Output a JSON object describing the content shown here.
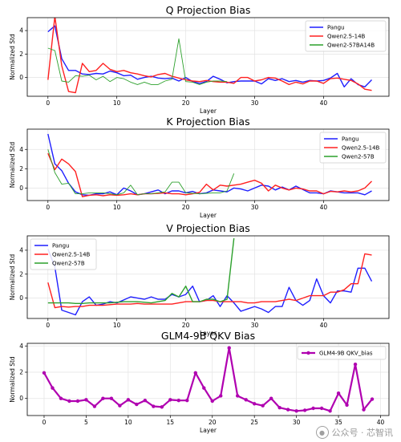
{
  "watermark": {
    "text": "公众号 · 芯智讯",
    "icon": "wechat-icon"
  },
  "colors": {
    "Pangu": "#1f1fff",
    "Qwen2.5-14B": "#ff2020",
    "Qwen2-57BA14B": "#2ca02c",
    "Qwen2-57B": "#2ca02c",
    "GLM4-9B QKV_bias": "#b000b0"
  },
  "chart_data": [
    {
      "type": "line",
      "title": "Q Projection Bias",
      "xlabel": "Layer",
      "ylabel": "Normalized Std",
      "xlim": [
        -3,
        49.5
      ],
      "ylim": [
        -1.6,
        5.1
      ],
      "xticks": [
        0,
        10,
        20,
        30,
        40
      ],
      "yticks": [
        0,
        2,
        4
      ],
      "grid": true,
      "legend": "top-right",
      "series": [
        {
          "name": "Pangu",
          "x_start": 0,
          "values": [
            3.9,
            4.4,
            1.6,
            0.6,
            0.6,
            0.3,
            0.25,
            0.35,
            0.3,
            0.55,
            0.4,
            0.15,
            0.2,
            -0.15,
            0.0,
            0.1,
            -0.05,
            -0.1,
            -0.05,
            -0.3,
            0.0,
            -0.35,
            -0.5,
            -0.35,
            0.1,
            -0.15,
            -0.45,
            -0.35,
            -0.3,
            -0.3,
            -0.3,
            -0.55,
            -0.1,
            -0.25,
            -0.1,
            -0.35,
            -0.25,
            -0.4,
            -0.25,
            -0.3,
            -0.25,
            -0.05,
            0.35,
            -0.8,
            -0.1,
            -0.6,
            -0.8,
            -0.2
          ]
        },
        {
          "name": "Qwen2.5-14B",
          "x_start": 0,
          "values": [
            -0.2,
            5.2,
            1.0,
            -1.2,
            -1.3,
            1.2,
            0.5,
            0.6,
            1.2,
            0.7,
            0.5,
            0.6,
            0.4,
            0.3,
            0.15,
            0.05,
            0.25,
            0.35,
            0.1,
            -0.05,
            -0.2,
            -0.3,
            -0.35,
            -0.25,
            -0.35,
            -0.4,
            -0.4,
            -0.5,
            0.0,
            0.0,
            -0.3,
            -0.2,
            0.0,
            -0.05,
            -0.3,
            -0.6,
            -0.4,
            -0.55,
            -0.3,
            -0.3,
            -0.5,
            -0.1,
            -0.05,
            -0.15,
            -0.25,
            -0.55,
            -1.0,
            -1.1
          ]
        },
        {
          "name": "Qwen2-57BA14B",
          "x_start": 0,
          "values": [
            2.5,
            2.3,
            -0.3,
            -0.4,
            0.15,
            0.1,
            0.2,
            -0.2,
            0.1,
            -0.35,
            0.0,
            -0.1,
            -0.4,
            -0.6,
            -0.4,
            -0.6,
            -0.6,
            -0.3,
            -0.15,
            3.3,
            -0.35,
            -0.4,
            -0.6,
            -0.4,
            -0.3,
            -0.3,
            -0.35
          ]
        }
      ]
    },
    {
      "type": "line",
      "title": "K Projection Bias",
      "xlabel": "Layer",
      "ylabel": "Normalized Std",
      "xlim": [
        -3,
        49.5
      ],
      "ylim": [
        -1.3,
        6.1
      ],
      "xticks": [
        0,
        10,
        20,
        30,
        40
      ],
      "yticks": [
        0,
        2,
        4
      ],
      "grid": true,
      "legend": "top-right",
      "series": [
        {
          "name": "Pangu",
          "x_start": 0,
          "values": [
            5.6,
            2.5,
            1.8,
            0.5,
            -0.4,
            -0.7,
            -0.75,
            -0.6,
            -0.6,
            -0.4,
            -0.7,
            0.0,
            -0.3,
            -0.7,
            -0.6,
            -0.4,
            -0.2,
            -0.6,
            -0.3,
            -0.3,
            -0.5,
            -0.35,
            -0.6,
            -0.5,
            -0.2,
            -0.3,
            -0.4,
            0.0,
            -0.1,
            -0.3,
            0.0,
            0.3,
            0.2,
            -0.2,
            0.1,
            -0.2,
            0.2,
            -0.15,
            -0.5,
            -0.5,
            -0.6,
            -0.3,
            -0.4,
            -0.5,
            -0.5,
            -0.5,
            -0.7,
            -0.3
          ]
        },
        {
          "name": "Qwen2.5-14B",
          "x_start": 0,
          "values": [
            3.6,
            1.9,
            3.0,
            2.5,
            1.7,
            -0.9,
            -0.75,
            -0.7,
            -0.8,
            -0.7,
            -0.75,
            -0.7,
            -0.6,
            -0.7,
            -0.6,
            -0.6,
            -0.55,
            -0.5,
            -0.6,
            -0.6,
            -0.7,
            -0.6,
            -0.45,
            0.4,
            -0.2,
            0.3,
            0.2,
            0.3,
            0.4,
            0.6,
            0.8,
            0.5,
            -0.3,
            0.3,
            0.0,
            -0.2,
            0.0,
            -0.1,
            -0.3,
            -0.3,
            -0.6,
            -0.35,
            -0.4,
            -0.3,
            -0.4,
            -0.3,
            0.0,
            0.7
          ]
        },
        {
          "name": "Qwen2-57B",
          "x_start": 0,
          "values": [
            4.0,
            1.6,
            0.4,
            0.5,
            -0.6,
            -0.6,
            -0.5,
            -0.5,
            -0.5,
            -0.6,
            -0.7,
            -0.5,
            0.3,
            -0.7,
            -0.6,
            -0.6,
            -0.5,
            -0.4,
            0.6,
            0.6,
            -0.5,
            -0.55,
            -0.6,
            -0.55,
            -0.5,
            -0.5,
            -0.3,
            1.5
          ]
        }
      ]
    },
    {
      "type": "line",
      "title": "V Projection Bias",
      "xlabel": "Layer",
      "ylabel": "Normalized Std",
      "xlim": [
        -3,
        49.5
      ],
      "ylim": [
        -1.7,
        5.2
      ],
      "xticks": [
        0,
        10,
        20,
        30,
        40
      ],
      "yticks": [
        0,
        2,
        4
      ],
      "grid": true,
      "legend": "top-left",
      "series": [
        {
          "name": "Pangu",
          "x_start": 0,
          "values": [
            4.1,
            2.6,
            -1.0,
            -1.2,
            -1.4,
            -0.3,
            0.1,
            -0.6,
            -0.5,
            -0.3,
            -0.4,
            -0.15,
            0.1,
            0.0,
            -0.1,
            0.1,
            -0.1,
            -0.1,
            0.3,
            0.1,
            0.3,
            1.0,
            -0.3,
            -0.2,
            0.2,
            -0.7,
            0.2,
            -0.4,
            -1.1,
            -0.9,
            -0.7,
            -0.9,
            -1.2,
            -0.7,
            -0.7,
            0.9,
            -0.2,
            -0.6,
            -0.2,
            1.6,
            0.2,
            -0.4,
            0.6,
            0.6,
            0.5,
            2.5,
            2.5,
            1.4
          ]
        },
        {
          "name": "Qwen2.5-14B",
          "x_start": 0,
          "values": [
            1.3,
            -0.8,
            -0.7,
            -0.75,
            -0.7,
            -0.7,
            -0.6,
            -0.6,
            -0.6,
            -0.55,
            -0.5,
            -0.5,
            -0.5,
            -0.45,
            -0.5,
            -0.5,
            -0.5,
            -0.5,
            -0.5,
            -0.4,
            -0.3,
            -0.3,
            -0.3,
            -0.2,
            -0.2,
            -0.3,
            -0.3,
            -0.3,
            -0.3,
            -0.4,
            -0.4,
            -0.3,
            -0.3,
            -0.3,
            -0.2,
            -0.1,
            -0.2,
            0.0,
            0.2,
            0.2,
            0.2,
            0.5,
            0.5,
            0.7,
            1.2,
            1.2,
            3.7,
            3.6
          ]
        },
        {
          "name": "Qwen2-57B",
          "x_start": 0,
          "values": [
            -0.4,
            -0.4,
            -0.4,
            -0.4,
            -0.45,
            -0.45,
            -0.4,
            -0.4,
            -0.4,
            -0.4,
            -0.35,
            -0.3,
            -0.3,
            -0.3,
            -0.35,
            -0.4,
            -0.3,
            -0.2,
            0.4,
            0.1,
            1.0,
            -0.3,
            -0.3,
            -0.1,
            -0.1,
            -0.3,
            -0.1,
            5.0
          ]
        }
      ]
    },
    {
      "type": "line",
      "title": "GLM4-9B QKV Bias",
      "xlabel": "Layer",
      "ylabel": "Normalized Std",
      "xlim": [
        -2,
        41
      ],
      "ylim": [
        -1.3,
        4.2
      ],
      "xticks": [
        0,
        5,
        10,
        15,
        20,
        25,
        30,
        35,
        40
      ],
      "yticks": [
        0,
        2,
        4
      ],
      "grid": true,
      "legend": "top-right",
      "markers": true,
      "series": [
        {
          "name": "GLM4-9B QKV_bias",
          "x_start": 0,
          "values": [
            1.95,
            0.8,
            0.0,
            -0.2,
            -0.2,
            -0.1,
            -0.6,
            0.0,
            0.0,
            -0.55,
            -0.1,
            -0.45,
            -0.15,
            -0.6,
            -0.65,
            -0.1,
            -0.15,
            -0.15,
            1.95,
            0.8,
            -0.2,
            0.2,
            3.85,
            0.2,
            -0.1,
            -0.4,
            -0.55,
            0.0,
            -0.7,
            -0.85,
            -0.95,
            -0.9,
            -0.75,
            -0.75,
            -0.95,
            0.4,
            -0.5,
            2.6,
            -0.85,
            -0.05
          ]
        }
      ]
    }
  ]
}
